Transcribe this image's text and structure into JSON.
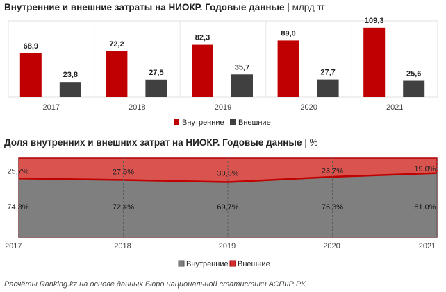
{
  "chart_data": [
    {
      "type": "bar",
      "title": "Внутренние и внешние затраты на НИОКР. Годовые данные",
      "unit": "| млрд тг",
      "categories": [
        "2017",
        "2018",
        "2019",
        "2020",
        "2021"
      ],
      "series": [
        {
          "name": "Внутренние",
          "color": "#c00000",
          "values": [
            68.9,
            72.2,
            82.3,
            89.0,
            109.3
          ],
          "labels": [
            "68,9",
            "72,2",
            "82,3",
            "89,0",
            "109,3"
          ]
        },
        {
          "name": "Внешние",
          "color": "#404040",
          "values": [
            23.8,
            27.5,
            35.7,
            27.7,
            25.6
          ],
          "labels": [
            "23,8",
            "27,5",
            "35,7",
            "27,7",
            "25,6"
          ]
        }
      ],
      "ylim": [
        0,
        120
      ],
      "legend": "bottom"
    },
    {
      "type": "area",
      "stacked": true,
      "title": "Доля внутренних и внешних затрат на НИОКР. Годовые данные",
      "unit": "| %",
      "x": [
        "2017",
        "2018",
        "2019",
        "2020",
        "2021"
      ],
      "series": [
        {
          "name": "Внутренние",
          "color": "#7f7f7f",
          "values": [
            74.3,
            72.4,
            69.7,
            76.3,
            81.0
          ],
          "labels": [
            "74,3%",
            "72,4%",
            "69,7%",
            "76,3%",
            "81,0%"
          ]
        },
        {
          "name": "Внешние",
          "color": "#d9534f",
          "values": [
            25.7,
            27.6,
            30.3,
            23.7,
            19.0
          ],
          "labels": [
            "25,7%",
            "27,6%",
            "30,3%",
            "23,7%",
            "19,0%"
          ]
        }
      ],
      "ylim": [
        0,
        100
      ],
      "legend": "bottom"
    }
  ],
  "source": "Расчёты Ranking.kz на основе данных Бюро национальной статистики АСПиР РК"
}
